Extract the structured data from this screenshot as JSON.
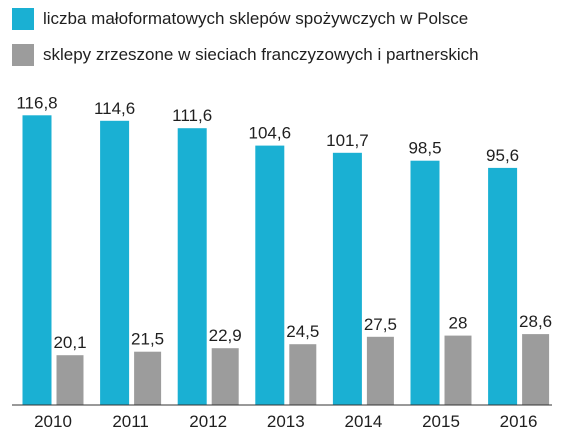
{
  "chart_data": {
    "type": "bar",
    "categories": [
      "2010",
      "2011",
      "2012",
      "2013",
      "2014",
      "2015",
      "2016"
    ],
    "series": [
      {
        "name": "liczba małoformatowych sklepów spożywczych w Polsce",
        "color": "#1ab0d3",
        "values": [
          116.8,
          114.6,
          111.6,
          104.6,
          101.7,
          98.5,
          95.6
        ],
        "labels": [
          "116,8",
          "114,6",
          "111,6",
          "104,6",
          "101,7",
          "98,5",
          "95,6"
        ]
      },
      {
        "name": "sklepy zrzeszone w sieciach franczyzowych i partnerskich",
        "color": "#9c9c9c",
        "values": [
          20.1,
          21.5,
          22.9,
          24.5,
          27.5,
          28,
          28.6
        ],
        "labels": [
          "20,1",
          "21,5",
          "22,9",
          "24,5",
          "27,5",
          "28",
          "28,6"
        ]
      }
    ],
    "ylim": [
      0,
      125
    ],
    "grid": false,
    "legend": "top-left"
  }
}
